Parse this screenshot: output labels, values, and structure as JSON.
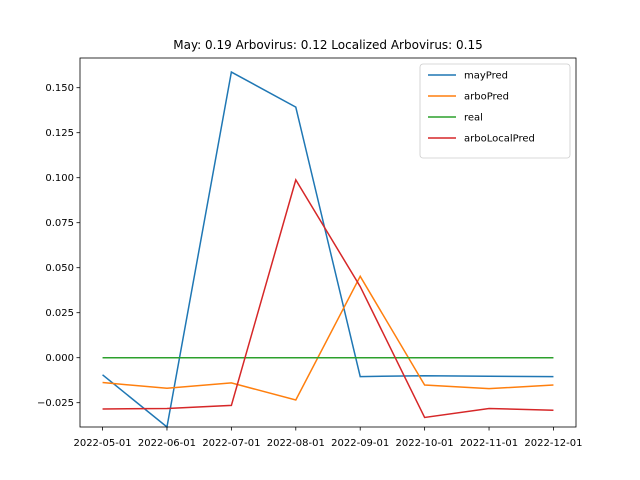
{
  "chart_data": {
    "type": "line",
    "title": "May: 0.19    Arbovirus: 0.12   Localized Arbovirus: 0.15",
    "xlabel": "",
    "ylabel": "",
    "x": [
      "2022-05-01",
      "2022-06-01",
      "2022-07-01",
      "2022-08-01",
      "2022-09-01",
      "2022-10-01",
      "2022-11-01",
      "2022-12-01"
    ],
    "ylim": [
      -0.0385,
      0.1665
    ],
    "yticks": [
      -0.025,
      0.0,
      0.025,
      0.05,
      0.075,
      0.1,
      0.125,
      0.15
    ],
    "ytick_labels": [
      "−0.025",
      "0.000",
      "0.025",
      "0.050",
      "0.075",
      "0.100",
      "0.125",
      "0.150"
    ],
    "grid": false,
    "legend_position": "top-right",
    "series": [
      {
        "name": "mayPred",
        "color": "#1f77b4",
        "values": [
          -0.0095,
          -0.0385,
          0.1587,
          0.1392,
          -0.0105,
          -0.01,
          -0.0103,
          -0.0105
        ]
      },
      {
        "name": "arboPred",
        "color": "#ff7f0e",
        "values": [
          -0.0138,
          -0.017,
          -0.014,
          -0.0235,
          0.0452,
          -0.0152,
          -0.0172,
          -0.0152
        ]
      },
      {
        "name": "real",
        "color": "#2ca02c",
        "values": [
          0.0,
          0.0,
          0.0,
          0.0,
          0.0,
          0.0,
          0.0,
          0.0
        ]
      },
      {
        "name": "arboLocalPred",
        "color": "#d62728",
        "values": [
          -0.0285,
          -0.0282,
          -0.0265,
          0.0988,
          0.0395,
          -0.0332,
          -0.0282,
          -0.0292
        ]
      }
    ]
  }
}
